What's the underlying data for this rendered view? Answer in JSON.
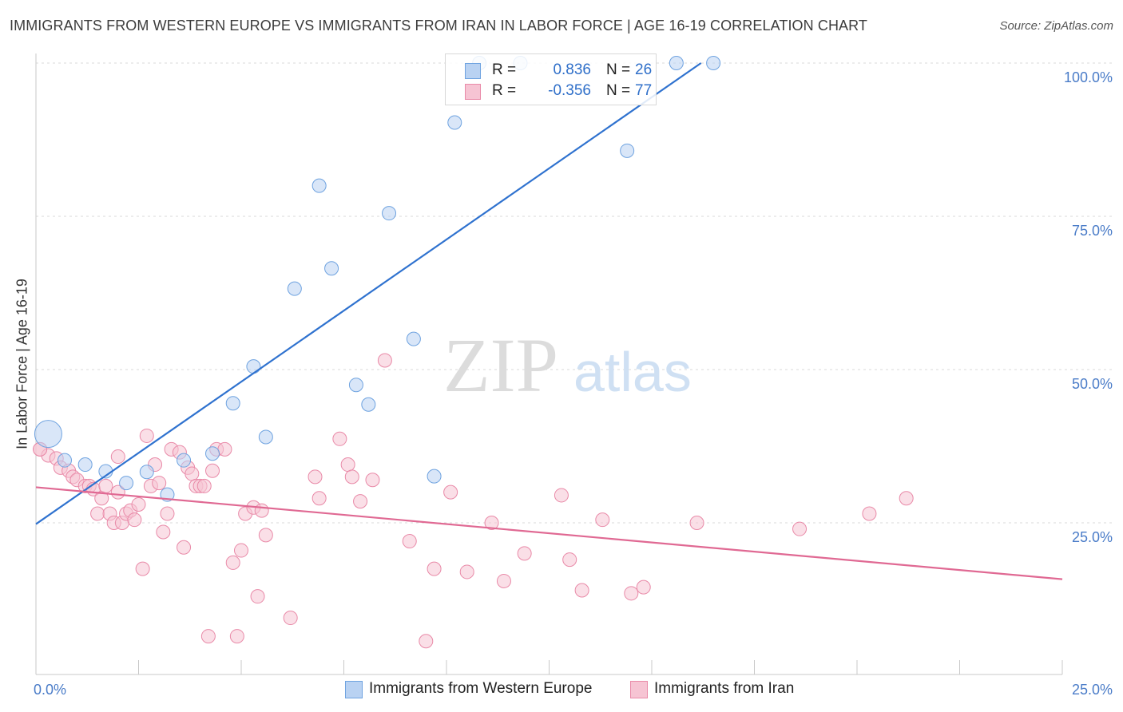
{
  "title": "IMMIGRANTS FROM WESTERN EUROPE VS IMMIGRANTS FROM IRAN IN LABOR FORCE | AGE 16-19 CORRELATION CHART",
  "source": "Source: ZipAtlas.com",
  "watermark": {
    "zip": "ZIP",
    "atlas": "atlas"
  },
  "legend": {
    "r_label": "R =",
    "n_label": "N =",
    "rows": [
      {
        "r": "0.836",
        "n": "26"
      },
      {
        "r": "-0.356",
        "n": "77"
      }
    ]
  },
  "chart_data": {
    "type": "scatter",
    "title": "IMMIGRANTS FROM WESTERN EUROPE VS IMMIGRANTS FROM IRAN IN LABOR FORCE | AGE 16-19 CORRELATION CHART",
    "xlabel": "",
    "ylabel": "In Labor Force | Age 16-19",
    "xlim": [
      0,
      25
    ],
    "ylim": [
      0,
      101
    ],
    "x_tick_labels": [
      {
        "value": 0,
        "label": "0.0%"
      },
      {
        "value": 25,
        "label": "25.0%"
      }
    ],
    "y_tick_labels": [
      {
        "value": 25,
        "label": "25.0%"
      },
      {
        "value": 50,
        "label": "50.0%"
      },
      {
        "value": 75,
        "label": "75.0%"
      },
      {
        "value": 100,
        "label": "100.0%"
      }
    ],
    "series": [
      {
        "name": "Immigrants from Western Europe",
        "color": "#6fa3e0",
        "fill": "#b9d2f2",
        "r": 0.836,
        "n": 26,
        "trend": {
          "x": [
            0,
            16.2
          ],
          "y": [
            24.8,
            100
          ]
        },
        "points": [
          [
            0.3,
            39.5,
            "big"
          ],
          [
            0.7,
            35.2
          ],
          [
            1.2,
            34.5
          ],
          [
            1.7,
            33.4
          ],
          [
            2.2,
            31.5
          ],
          [
            2.7,
            33.3
          ],
          [
            3.2,
            29.6
          ],
          [
            3.6,
            35.2
          ],
          [
            4.3,
            36.3
          ],
          [
            4.8,
            44.5
          ],
          [
            5.3,
            50.5
          ],
          [
            5.6,
            39.0
          ],
          [
            6.3,
            63.2
          ],
          [
            6.9,
            80.0
          ],
          [
            7.2,
            66.5
          ],
          [
            7.8,
            47.5
          ],
          [
            8.1,
            44.3
          ],
          [
            8.6,
            75.5
          ],
          [
            9.2,
            55.0
          ],
          [
            9.7,
            32.6
          ],
          [
            10.2,
            90.3
          ],
          [
            10.8,
            100.0
          ],
          [
            11.8,
            100.0
          ],
          [
            14.4,
            85.7
          ],
          [
            15.6,
            100.0
          ],
          [
            16.5,
            100.0
          ]
        ]
      },
      {
        "name": "Immigrants from Iran",
        "color": "#e98aa8",
        "fill": "#f6c4d3",
        "r": -0.356,
        "n": 77,
        "trend": {
          "x": [
            0,
            25
          ],
          "y": [
            30.8,
            15.8
          ]
        },
        "points": [
          [
            0.1,
            37.0
          ],
          [
            0.3,
            36.0
          ],
          [
            0.5,
            35.5
          ],
          [
            0.6,
            34.0
          ],
          [
            0.8,
            33.5
          ],
          [
            0.9,
            32.5
          ],
          [
            1.0,
            32.0
          ],
          [
            1.2,
            31.0
          ],
          [
            1.3,
            31.0
          ],
          [
            1.4,
            30.5
          ],
          [
            1.5,
            26.5
          ],
          [
            1.6,
            29.0
          ],
          [
            1.7,
            31.0
          ],
          [
            1.8,
            26.5
          ],
          [
            1.9,
            25.0
          ],
          [
            2.0,
            30.0
          ],
          [
            2.0,
            35.8
          ],
          [
            2.1,
            25.0
          ],
          [
            2.2,
            26.5
          ],
          [
            2.3,
            27.0
          ],
          [
            2.4,
            25.5
          ],
          [
            2.5,
            28.0
          ],
          [
            2.6,
            17.5
          ],
          [
            2.7,
            39.2
          ],
          [
            2.8,
            31.0
          ],
          [
            2.9,
            34.5
          ],
          [
            3.0,
            31.5
          ],
          [
            3.1,
            23.5
          ],
          [
            3.2,
            26.5
          ],
          [
            3.3,
            37.0
          ],
          [
            3.5,
            36.5
          ],
          [
            3.6,
            21.0
          ],
          [
            3.7,
            34.0
          ],
          [
            3.8,
            33.0
          ],
          [
            3.9,
            31.0
          ],
          [
            4.0,
            31.0
          ],
          [
            4.1,
            31.0
          ],
          [
            4.2,
            6.5
          ],
          [
            4.3,
            33.5
          ],
          [
            4.4,
            37.0
          ],
          [
            4.6,
            37.0
          ],
          [
            4.8,
            18.5
          ],
          [
            4.9,
            6.5
          ],
          [
            5.0,
            20.5
          ],
          [
            5.1,
            26.5
          ],
          [
            5.3,
            27.5
          ],
          [
            5.4,
            13.0
          ],
          [
            5.5,
            27.0
          ],
          [
            5.6,
            23.0
          ],
          [
            6.2,
            9.5
          ],
          [
            6.8,
            32.5
          ],
          [
            6.9,
            29.0
          ],
          [
            7.4,
            38.7
          ],
          [
            7.6,
            34.5
          ],
          [
            7.7,
            32.5
          ],
          [
            7.9,
            28.5
          ],
          [
            8.2,
            32.0
          ],
          [
            8.5,
            51.5
          ],
          [
            9.1,
            22.0
          ],
          [
            9.5,
            5.7
          ],
          [
            9.7,
            17.5
          ],
          [
            10.1,
            30.0
          ],
          [
            10.5,
            17.0
          ],
          [
            11.1,
            25.0
          ],
          [
            11.4,
            15.5
          ],
          [
            11.9,
            20.0
          ],
          [
            12.8,
            29.5
          ],
          [
            13.0,
            19.0
          ],
          [
            13.3,
            14.0
          ],
          [
            13.8,
            25.5
          ],
          [
            14.5,
            13.5
          ],
          [
            14.8,
            14.5
          ],
          [
            16.1,
            25.0
          ],
          [
            18.6,
            24.0
          ],
          [
            20.3,
            26.5
          ],
          [
            21.2,
            29.0
          ],
          [
            0.1,
            37.0
          ]
        ]
      }
    ]
  }
}
